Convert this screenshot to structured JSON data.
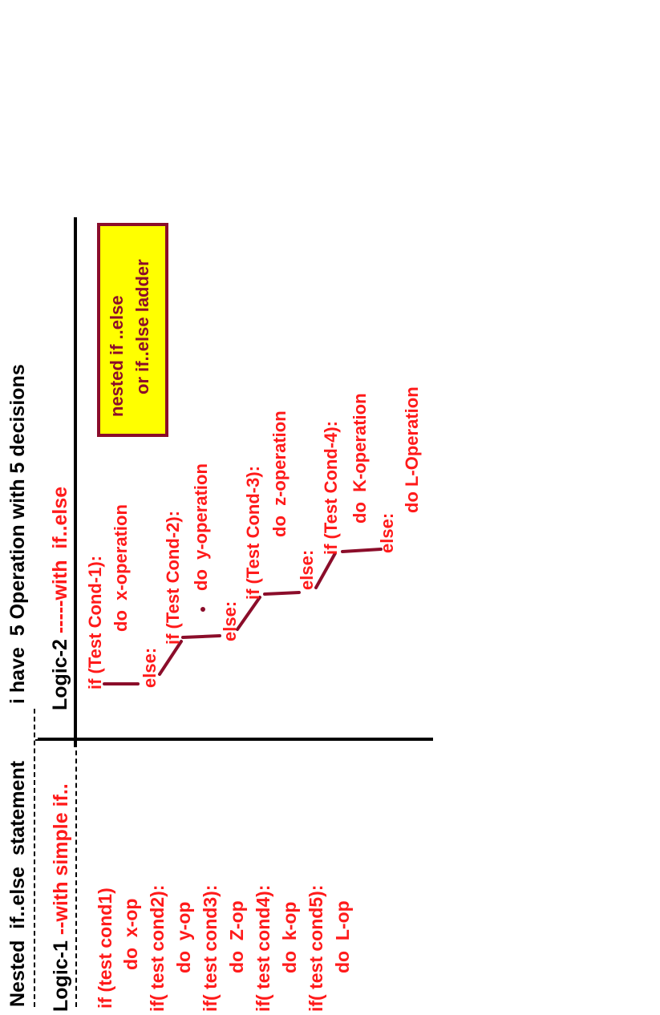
{
  "header": {
    "title": "Nested  if..else  statement",
    "subtitle": "i have  5 Operation with 5 decisions"
  },
  "logic1": {
    "label": "Logic-1",
    "label_suffix": " --with simple if..",
    "lines": [
      "if (test cond1)",
      "do  x-op",
      "if( test cond2):",
      "do  y-op",
      "if( test cond3):",
      "do  Z-op",
      "if( test cond4):",
      "do  k-op",
      "if( test cond5):",
      "do  L-op"
    ]
  },
  "logic2": {
    "label": "Logic-2",
    "label_suffix": " -----with  if..else",
    "steps": [
      {
        "cond": "if (Test Cond-1):",
        "op": "do  x-operation",
        "else": "else:"
      },
      {
        "cond": "if (Test Cond-2):",
        "op": "do  y-operation",
        "else": "else:"
      },
      {
        "cond": "if (Test Cond-3):",
        "op": "do  z-operation",
        "else": "else:"
      },
      {
        "cond": "if (Test Cond-4):",
        "op": "do  K-operation",
        "else": "else:"
      }
    ],
    "final": "do L-Operation",
    "bullet": "."
  },
  "callout": {
    "line1": "nested if ..else",
    "line2": "or if..else ladder"
  },
  "colors": {
    "text_red": "#ff1a1a",
    "ladder": "#8b0d2a",
    "callout_bg": "#ffff00",
    "callout_border": "#8b0d2a",
    "lines": "#000000"
  }
}
